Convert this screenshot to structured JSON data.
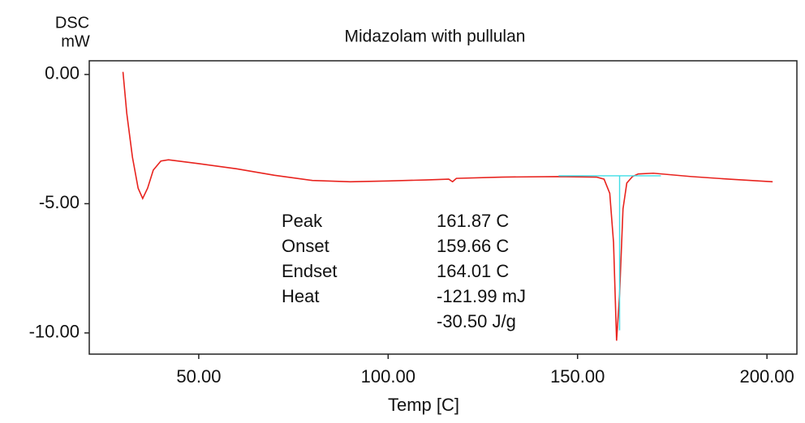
{
  "chart_data": {
    "type": "line",
    "title": "Midazolam with pullulan",
    "y_label": [
      "DSC",
      "mW"
    ],
    "x_label": "Temp [C]",
    "xlim": [
      21.1,
      207.9
    ],
    "ylim": [
      -10.82,
      0.53
    ],
    "xticks": [
      {
        "value": 50,
        "label": "50.00"
      },
      {
        "value": 100,
        "label": "100.00"
      },
      {
        "value": 150,
        "label": "150.00"
      },
      {
        "value": 200,
        "label": "200.00"
      }
    ],
    "yticks": [
      {
        "value": 0,
        "label": "0.00"
      },
      {
        "value": -5,
        "label": "-5.00"
      },
      {
        "value": -10,
        "label": "-10.00"
      }
    ],
    "series": [
      {
        "color": "#e8231e",
        "x": [
          30,
          31,
          32.5,
          34,
          35.2,
          36.5,
          38,
          40,
          42,
          50,
          60,
          70,
          80,
          90,
          100,
          110,
          116,
          117,
          118,
          130,
          145,
          155,
          157,
          158.5,
          159.5,
          160.3,
          161.1,
          162,
          163,
          164.5,
          166,
          170,
          180,
          190,
          201.5
        ],
        "values": [
          0.1,
          -1.5,
          -3.2,
          -4.4,
          -4.8,
          -4.4,
          -3.7,
          -3.35,
          -3.3,
          -3.45,
          -3.65,
          -3.9,
          -4.1,
          -4.15,
          -4.12,
          -4.08,
          -4.05,
          -4.15,
          -4.02,
          -3.97,
          -3.95,
          -3.97,
          -4.05,
          -4.6,
          -6.5,
          -10.3,
          -8.5,
          -5.2,
          -4.2,
          -3.95,
          -3.85,
          -3.82,
          -3.95,
          -4.05,
          -4.15
        ]
      },
      {
        "color": "#3fdde6",
        "x": [
          145,
          172
        ],
        "values": [
          -3.92,
          -3.92
        ]
      },
      {
        "color": "#3fdde6",
        "x": [
          161.1,
          161.1
        ],
        "values": [
          -3.92,
          -9.9
        ]
      }
    ],
    "annotations": [
      {
        "label": "Peak",
        "value": "161.87 C"
      },
      {
        "label": "Onset",
        "value": "159.66 C"
      },
      {
        "label": "Endset",
        "value": "164.01 C"
      },
      {
        "label": "Heat",
        "value": "-121.99 mJ"
      },
      {
        "value": "-30.50 J/g"
      }
    ]
  }
}
